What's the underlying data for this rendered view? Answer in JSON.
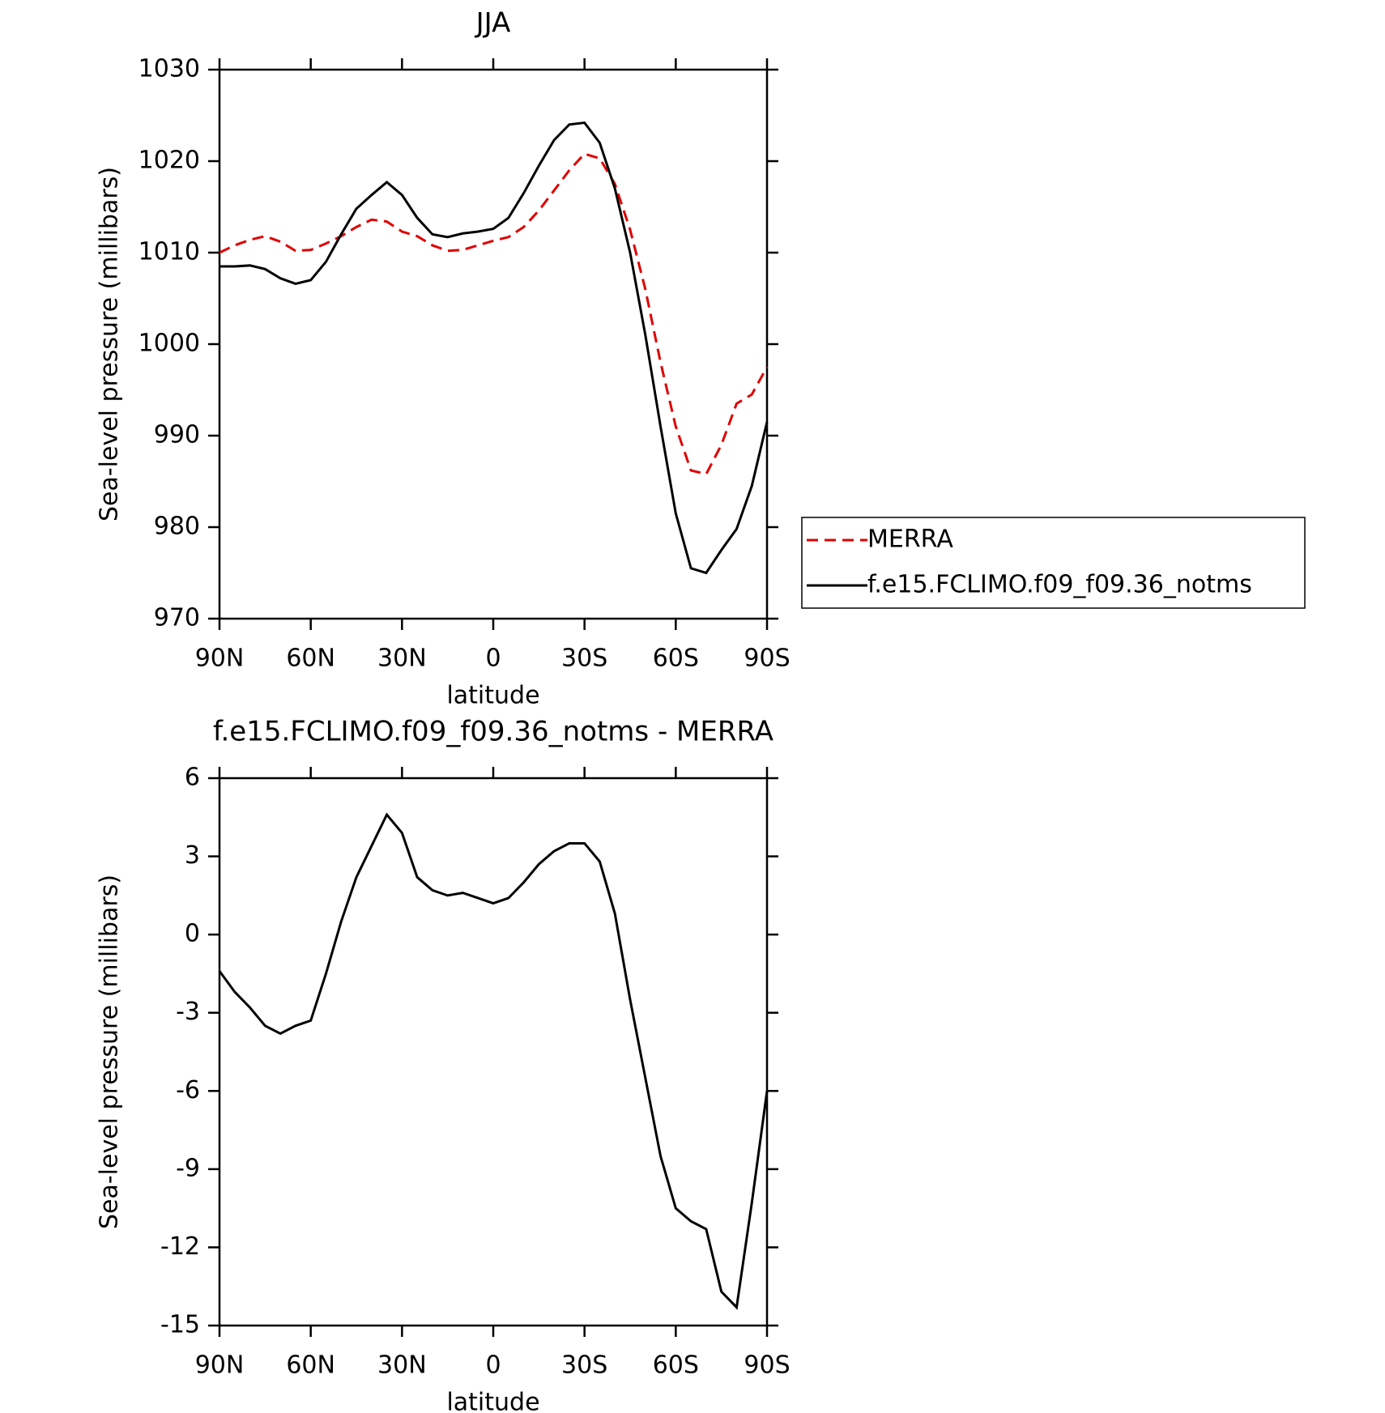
{
  "chart_data": [
    {
      "type": "line",
      "title": "JJA",
      "x_label": "latitude",
      "y_label": "Sea-level pressure (millibars)",
      "x": [
        90,
        85,
        80,
        75,
        70,
        65,
        60,
        55,
        50,
        45,
        40,
        35,
        30,
        25,
        20,
        15,
        10,
        5,
        0,
        -5,
        -10,
        -15,
        -20,
        -25,
        -30,
        -35,
        -40,
        -45,
        -50,
        -55,
        -60,
        -65,
        -70,
        -75,
        -80,
        -85,
        -90
      ],
      "xlim": [
        90,
        -90
      ],
      "xticks": [
        {
          "value": 90,
          "label": "90N"
        },
        {
          "value": 60,
          "label": "60N"
        },
        {
          "value": 30,
          "label": "30N"
        },
        0,
        {
          "value": -30,
          "label": "30S"
        },
        {
          "value": -60,
          "label": "60S"
        },
        {
          "value": -90,
          "label": "90S"
        }
      ],
      "ylim": [
        970,
        1030
      ],
      "yticks": [
        970,
        980,
        990,
        1000,
        1010,
        1020,
        1030
      ],
      "legend": "right",
      "series": [
        {
          "name": "MERRA",
          "color": "#e00000",
          "dash": true,
          "values": [
            1010,
            1010.8,
            1011.4,
            1011.8,
            1011.2,
            1010.2,
            1010.3,
            1011,
            1011.8,
            1012.8,
            1013.6,
            1013.4,
            1012.3,
            1011.8,
            1010.8,
            1010.2,
            1010.3,
            1010.8,
            1011.3,
            1011.7,
            1012.8,
            1014.6,
            1016.8,
            1019,
            1020.8,
            1020.3,
            1017.5,
            1012.5,
            1006,
            998,
            991,
            986.2,
            985.8,
            989,
            993.5,
            994.5,
            997.5
          ]
        },
        {
          "name": "f.e15.FCLIMO.f09_f09.36_notms",
          "color": "#000000",
          "dash": false,
          "values": [
            1008.5,
            1008.5,
            1008.6,
            1008.2,
            1007.2,
            1006.6,
            1007,
            1009,
            1012,
            1014.8,
            1016.3,
            1017.7,
            1016.3,
            1013.8,
            1012,
            1011.7,
            1012.1,
            1012.3,
            1012.6,
            1013.8,
            1016.5,
            1019.5,
            1022.3,
            1024,
            1024.2,
            1022,
            1017,
            1010,
            1001,
            991,
            981.5,
            975.5,
            975,
            977.5,
            979.8,
            984.5,
            991.5
          ]
        }
      ]
    },
    {
      "type": "line",
      "title": "f.e15.FCLIMO.f09_f09.36_notms - MERRA",
      "x_label": "latitude",
      "y_label": "Sea-level pressure (millibars)",
      "x": [
        90,
        85,
        80,
        75,
        70,
        65,
        60,
        55,
        50,
        45,
        40,
        35,
        30,
        25,
        20,
        15,
        10,
        5,
        0,
        -5,
        -10,
        -15,
        -20,
        -25,
        -30,
        -35,
        -40,
        -45,
        -50,
        -55,
        -60,
        -65,
        -70,
        -75,
        -80,
        -85,
        -90
      ],
      "xlim": [
        90,
        -90
      ],
      "xticks": [
        {
          "value": 90,
          "label": "90N"
        },
        {
          "value": 60,
          "label": "60N"
        },
        {
          "value": 30,
          "label": "30N"
        },
        0,
        {
          "value": -30,
          "label": "30S"
        },
        {
          "value": -60,
          "label": "60S"
        },
        {
          "value": -90,
          "label": "90S"
        }
      ],
      "ylim": [
        -15,
        6
      ],
      "yticks": [
        -15,
        -12,
        -9,
        -6,
        -3,
        0,
        3,
        6
      ],
      "series": [
        {
          "color": "#000000",
          "dash": false,
          "values": [
            -1.4,
            -2.2,
            -2.8,
            -3.5,
            -3.8,
            -3.5,
            -3.3,
            -1.5,
            0.5,
            2.2,
            3.4,
            4.6,
            3.9,
            2.2,
            1.7,
            1.5,
            1.6,
            1.4,
            1.2,
            1.4,
            2,
            2.7,
            3.2,
            3.5,
            3.5,
            2.8,
            0.8,
            -2.5,
            -5.5,
            -8.5,
            -10.5,
            -11,
            -11.3,
            -13.7,
            -14.3,
            -10.3,
            -6
          ]
        }
      ]
    }
  ]
}
